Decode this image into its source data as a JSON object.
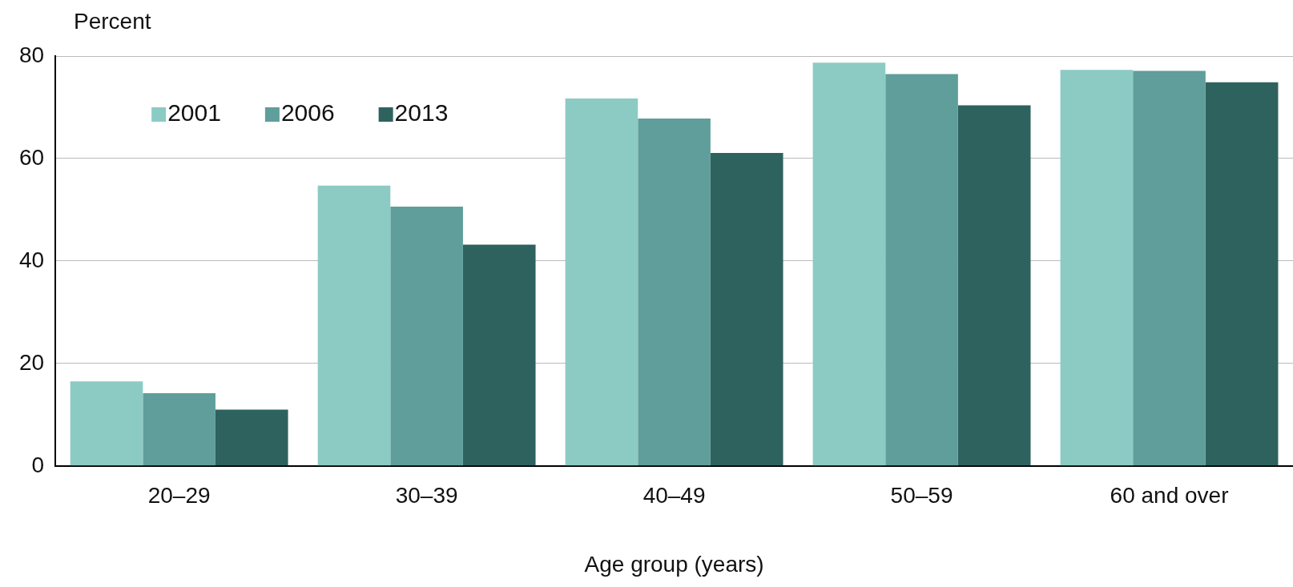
{
  "chart_data": {
    "type": "bar",
    "ylabel": "Percent",
    "xlabel": "Age group (years)",
    "categories": [
      "20–29",
      "30–39",
      "40–49",
      "50–59",
      "60 and over"
    ],
    "series": [
      {
        "name": "2001",
        "color": "#8ccbc3",
        "values": [
          16.5,
          54.7,
          71.7,
          78.7,
          77.3
        ]
      },
      {
        "name": "2006",
        "color": "#5f9e9a",
        "values": [
          14.2,
          50.6,
          67.8,
          76.5,
          77.1
        ]
      },
      {
        "name": "2013",
        "color": "#2e625f",
        "values": [
          11.0,
          43.2,
          61.1,
          70.4,
          74.9
        ]
      }
    ],
    "ylim": [
      0,
      80
    ],
    "yticks": [
      0,
      20,
      40,
      60,
      80
    ],
    "grid": "y",
    "legend": "top left"
  }
}
